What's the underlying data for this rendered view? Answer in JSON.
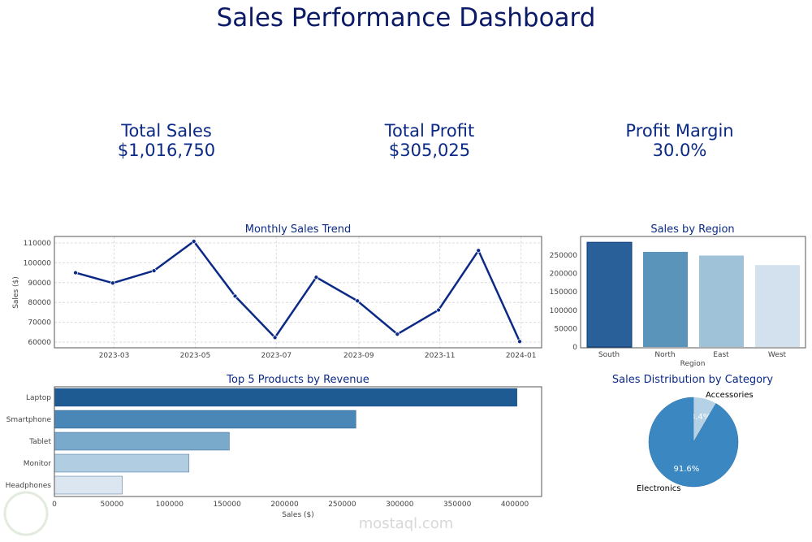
{
  "title": "Sales Performance Dashboard",
  "kpis": [
    {
      "label": "Total Sales",
      "value": "$1,016,750"
    },
    {
      "label": "Total Profit",
      "value": "$305,025"
    },
    {
      "label": "Profit Margin",
      "value": "30.0%"
    }
  ],
  "watermark": "mostaql.com",
  "chart_data": [
    {
      "type": "line",
      "title": "Monthly Sales Trend",
      "xlabel": "",
      "ylabel": "Sales ($)",
      "x": [
        "2023-01-31",
        "2023-02-28",
        "2023-03-31",
        "2023-04-30",
        "2023-05-31",
        "2023-06-30",
        "2023-07-31",
        "2023-08-31",
        "2023-09-30",
        "2023-10-31",
        "2023-11-30",
        "2023-12-31"
      ],
      "values": [
        95000,
        89800,
        96000,
        110800,
        83200,
        62300,
        92700,
        80800,
        64000,
        76200,
        106200,
        60300
      ],
      "xticks": [
        "2023-03",
        "2023-05",
        "2023-07",
        "2023-09",
        "2023-11",
        "2024-01"
      ],
      "yticks": [
        60000,
        70000,
        80000,
        90000,
        100000,
        110000
      ],
      "grid": true,
      "color": "#0b2a86"
    },
    {
      "type": "bar",
      "title": "Sales by Region",
      "xlabel": "Region",
      "ylabel": "",
      "categories": [
        "South",
        "North",
        "East",
        "West"
      ],
      "values": [
        285000,
        259000,
        249000,
        223000
      ],
      "yticks": [
        0,
        50000,
        100000,
        150000,
        200000,
        250000
      ],
      "colors": [
        "#2a6099",
        "#5b94bb",
        "#a0c2d8",
        "#d3e1ee"
      ]
    },
    {
      "type": "bar",
      "orientation": "horizontal",
      "title": "Top 5 Products by Revenue",
      "xlabel": "Sales ($)",
      "ylabel": "",
      "categories": [
        "Laptop",
        "Smartphone",
        "Tablet",
        "Monitor",
        "Headphones"
      ],
      "values": [
        402000,
        262000,
        152000,
        117000,
        59000
      ],
      "xticks": [
        0,
        50000,
        100000,
        150000,
        200000,
        250000,
        300000,
        350000,
        400000
      ],
      "colors": [
        "#1f5b93",
        "#4a87b6",
        "#7aaacb",
        "#b1cde1",
        "#dbe6f1"
      ]
    },
    {
      "type": "pie",
      "title": "Sales Distribution by Category",
      "categories": [
        "Accessories",
        "Electronics"
      ],
      "values": [
        8.4,
        91.6
      ],
      "labels": [
        "8.4%",
        "91.6%"
      ],
      "colors": [
        "#b4d1e5",
        "#3a87c2"
      ]
    }
  ]
}
